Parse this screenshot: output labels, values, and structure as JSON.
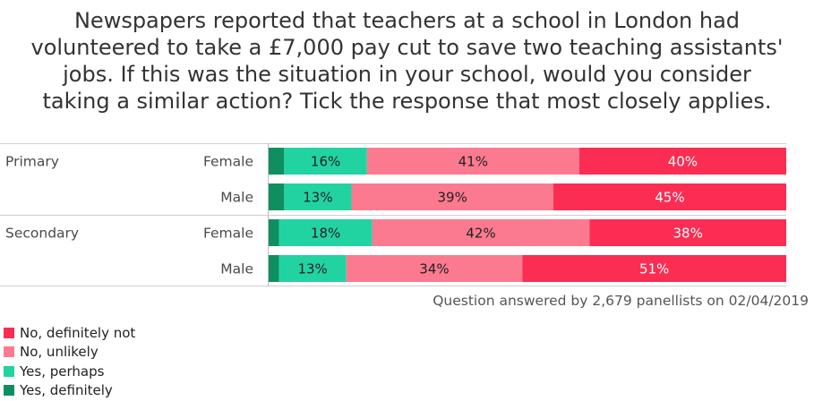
{
  "title_lines": [
    "Newspapers reported that teachers at a school in London had",
    "volunteered to take a £7,000 pay cut to save two teaching assistants'",
    "jobs. If this was the situation in your school, would you consider",
    "taking a similar action? Tick the response that most closely applies."
  ],
  "footnote": "Question answered by 2,679 panellists on 02/04/2019",
  "colors": {
    "yes_definitely": "#0f8f5f",
    "yes_perhaps": "#22d3a2",
    "no_unlikely": "#fb7a90",
    "no_definitely_not": "#fb2d52"
  },
  "chart_data": {
    "type": "bar",
    "orientation": "horizontal",
    "stacked": true,
    "percent": true,
    "groups": [
      {
        "name": "Primary",
        "rows": [
          {
            "label": "Female",
            "values": [
              3,
              16,
              41,
              40
            ]
          },
          {
            "label": "Male",
            "values": [
              3,
              13,
              39,
              45
            ]
          }
        ]
      },
      {
        "name": "Secondary",
        "rows": [
          {
            "label": "Female",
            "values": [
              2,
              18,
              42,
              38
            ]
          },
          {
            "label": "Male",
            "values": [
              2,
              13,
              34,
              51
            ]
          }
        ]
      }
    ],
    "series": [
      {
        "name": "Yes, definitely",
        "color": "#0f8f5f"
      },
      {
        "name": "Yes, perhaps",
        "color": "#22d3a2"
      },
      {
        "name": "No, unlikely",
        "color": "#fb7a90"
      },
      {
        "name": "No, definitely not",
        "color": "#fb2d52"
      }
    ],
    "legend_order": [
      "No, definitely not",
      "No, unlikely",
      "Yes, perhaps",
      "Yes, definitely"
    ],
    "xlim": [
      0,
      100
    ],
    "legend_position": "bottom-left"
  }
}
